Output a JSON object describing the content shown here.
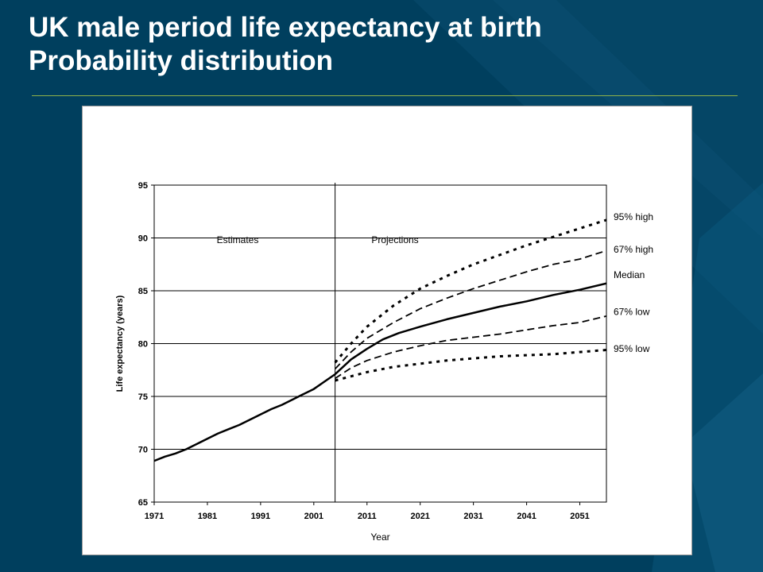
{
  "slide": {
    "title_line1": "UK male period life expectancy at birth",
    "title_line2": "Probability distribution"
  },
  "colors": {
    "background": "#003f5e",
    "title": "#ffffff",
    "rule": "#8fb14a"
  },
  "chart_data": {
    "type": "line",
    "xlabel": "Year",
    "ylabel": "Life expectancy (years)",
    "xlim": [
      1971,
      2056
    ],
    "ylim": [
      65,
      95
    ],
    "x_ticks": [
      1971,
      1981,
      1991,
      2001,
      2011,
      2021,
      2031,
      2041,
      2051
    ],
    "y_ticks": [
      65,
      70,
      75,
      80,
      85,
      90,
      95
    ],
    "grid": "horizontal",
    "divider_year": 2005,
    "region_labels": {
      "left": "Estimates",
      "right": "Projections"
    },
    "series": [
      {
        "name": "Median",
        "style": "solid",
        "x": [
          1971,
          1973,
          1975,
          1977,
          1979,
          1981,
          1983,
          1985,
          1987,
          1989,
          1991,
          1993,
          1995,
          1997,
          1999,
          2001,
          2003,
          2005,
          2008,
          2011,
          2014,
          2017,
          2021,
          2026,
          2031,
          2036,
          2041,
          2046,
          2051,
          2056
        ],
        "values": [
          68.9,
          69.3,
          69.6,
          70.0,
          70.5,
          71.0,
          71.5,
          71.9,
          72.3,
          72.8,
          73.3,
          73.8,
          74.2,
          74.7,
          75.2,
          75.7,
          76.4,
          77.1,
          78.5,
          79.5,
          80.4,
          81.0,
          81.6,
          82.3,
          82.9,
          83.5,
          84.0,
          84.6,
          85.1,
          85.7
        ]
      },
      {
        "name": "95% high",
        "style": "dotted",
        "x": [
          2005,
          2008,
          2011,
          2016,
          2021,
          2026,
          2031,
          2036,
          2041,
          2046,
          2051,
          2056
        ],
        "values": [
          78.2,
          80.0,
          81.6,
          83.6,
          85.2,
          86.4,
          87.5,
          88.4,
          89.3,
          90.1,
          90.9,
          91.7
        ]
      },
      {
        "name": "67% high",
        "style": "dashed",
        "x": [
          2005,
          2008,
          2011,
          2016,
          2021,
          2026,
          2031,
          2036,
          2041,
          2046,
          2051,
          2056
        ],
        "values": [
          77.6,
          79.2,
          80.5,
          82.0,
          83.3,
          84.3,
          85.2,
          86.0,
          86.8,
          87.5,
          88.0,
          88.8
        ]
      },
      {
        "name": "67% low",
        "style": "dashed",
        "x": [
          2005,
          2008,
          2011,
          2016,
          2021,
          2026,
          2031,
          2036,
          2041,
          2046,
          2051,
          2056
        ],
        "values": [
          76.7,
          77.7,
          78.4,
          79.2,
          79.8,
          80.3,
          80.6,
          80.9,
          81.3,
          81.7,
          82.0,
          82.6
        ]
      },
      {
        "name": "95% low",
        "style": "dotted",
        "x": [
          2005,
          2008,
          2011,
          2016,
          2021,
          2026,
          2031,
          2036,
          2041,
          2046,
          2051,
          2056
        ],
        "values": [
          76.5,
          76.9,
          77.3,
          77.8,
          78.1,
          78.4,
          78.6,
          78.8,
          78.9,
          79.0,
          79.2,
          79.4
        ]
      }
    ],
    "series_label_y": [
      92.0,
      88.9,
      86.5,
      83.0,
      79.5
    ]
  }
}
